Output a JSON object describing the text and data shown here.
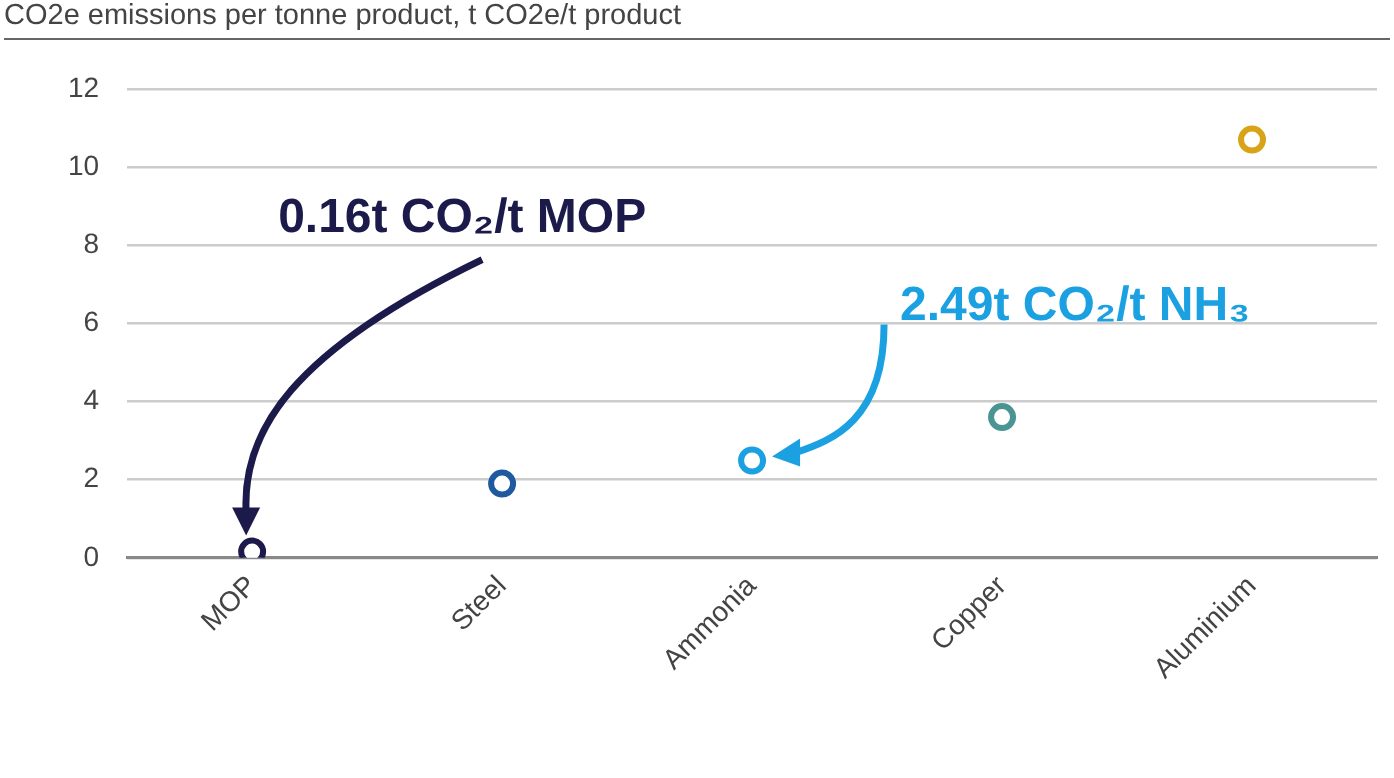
{
  "chart_data": {
    "type": "scatter",
    "title": "CO2e emissions per tonne product, t CO2e/t product",
    "categories": [
      "MOP",
      "Steel",
      "Ammonia",
      "Copper",
      "Aluminium"
    ],
    "values": [
      0.16,
      1.9,
      2.49,
      3.6,
      10.7
    ],
    "colors": [
      "#1c1a4a",
      "#1f5aa0",
      "#1ba1e2",
      "#4a9494",
      "#d8a317"
    ],
    "ylim": [
      0,
      12
    ],
    "yticks": [
      0,
      2,
      4,
      6,
      8,
      10,
      12
    ],
    "grid": "y",
    "marker": "circle",
    "annotations": [
      "0.16t CO₂/t MOP",
      "2.49t CO₂/t NH₃"
    ]
  }
}
